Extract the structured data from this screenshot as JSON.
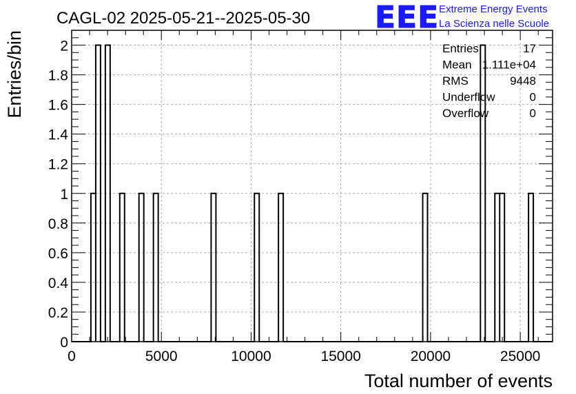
{
  "chart_data": {
    "type": "bar",
    "title": "CAGL-02 2025-05-21--2025-05-30",
    "xlabel": "Total number of events",
    "ylabel": "Entries/bin",
    "xlim": [
      0,
      26800
    ],
    "ylim": [
      0,
      2.1
    ],
    "grid": true,
    "bin_width": 268,
    "xticks": [
      "0",
      "5000",
      "10000",
      "15000",
      "20000",
      "25000"
    ],
    "yticks": [
      "0",
      "0.2",
      "0.4",
      "0.6",
      "0.8",
      "1",
      "1.2",
      "1.4",
      "1.6",
      "1.8",
      "2"
    ],
    "bins": [
      {
        "x": 1072,
        "value": 1
      },
      {
        "x": 1340,
        "value": 2
      },
      {
        "x": 1876,
        "value": 2
      },
      {
        "x": 2680,
        "value": 1
      },
      {
        "x": 3752,
        "value": 1
      },
      {
        "x": 4556,
        "value": 1
      },
      {
        "x": 7772,
        "value": 1
      },
      {
        "x": 10184,
        "value": 1
      },
      {
        "x": 11524,
        "value": 1
      },
      {
        "x": 19564,
        "value": 1
      },
      {
        "x": 22780,
        "value": 2
      },
      {
        "x": 23584,
        "value": 1
      },
      {
        "x": 23852,
        "value": 1
      },
      {
        "x": 25460,
        "value": 1
      }
    ],
    "stats": [
      {
        "label": "Entries",
        "value": "17"
      },
      {
        "label": "Mean",
        "value": "1.111e+04"
      },
      {
        "label": "RMS",
        "value": "9448"
      },
      {
        "label": "Underflow",
        "value": "0"
      },
      {
        "label": "Overflow",
        "value": "0"
      }
    ]
  },
  "logo": {
    "mark": "EEE",
    "line1": "Extreme Energy Events",
    "line2": "La Scienza nelle Scuole",
    "color": "#1a1aff"
  }
}
